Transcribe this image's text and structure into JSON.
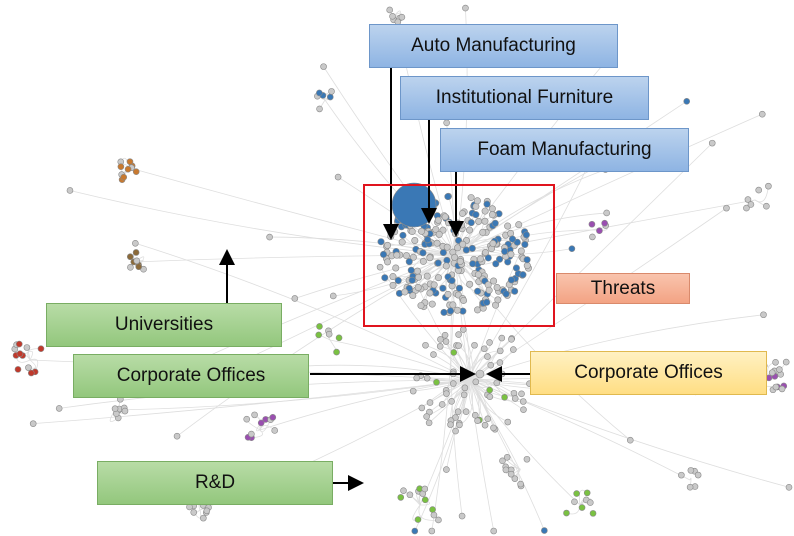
{
  "labels": {
    "auto": "Auto Manufacturing",
    "furniture": "Institutional Furniture",
    "foam": "Foam Manufacturing",
    "threats": "Threats",
    "universities": "Universities",
    "corporate_left": "Corporate Offices",
    "corporate_right": "Corporate Offices",
    "rd": "R&D"
  },
  "colors": {
    "node_default": "#c9c9c9",
    "node_stroke": "#8a8a8a",
    "node_blue": "#3a78b5",
    "node_green": "#7ac142",
    "node_purple": "#9a4fb0",
    "node_orange": "#c8792f",
    "node_brown": "#8b6a3a",
    "node_red": "#c0392b",
    "edge": "#dedede",
    "threat_box": "#e0141e",
    "arrow": "#000000"
  }
}
